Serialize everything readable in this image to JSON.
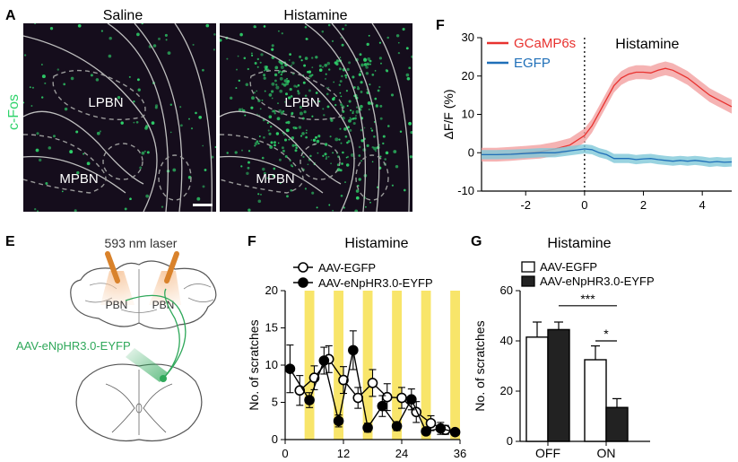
{
  "panel_letters": {
    "A": "A",
    "F_top": "F",
    "E": "E",
    "F_bottom": "F",
    "G": "G"
  },
  "panelA": {
    "labels": {
      "saline": "Saline",
      "histamine": "Histamine",
      "cfos": "c-Fos",
      "lpbn": "LPBN",
      "mpbn": "MPBN"
    },
    "colors": {
      "background": "#150d1c",
      "dots": "#2fd36b",
      "outline": "#bfbfbf"
    }
  },
  "panelE": {
    "laser": "593 nm laser",
    "pbn": "PBN",
    "virus": "AAV-eNpHR3.0-EYFP",
    "colors": {
      "fiber": "#d9822b",
      "virus": "#2fa85a",
      "light": "#f7c8a0"
    }
  },
  "chart_data": [
    {
      "panel": "F (top)",
      "type": "line",
      "title": "Histamine",
      "xlabel": "",
      "ylabel": "ΔF/F (%)",
      "xlim": [
        -3.5,
        5
      ],
      "ylim": [
        -10,
        30
      ],
      "xticks": [
        "-2",
        "0",
        "2",
        "4"
      ],
      "xtick_values": [
        -2,
        0,
        2,
        4
      ],
      "yticks": [
        "-10",
        "0",
        "10",
        "20",
        "30"
      ],
      "ytick_values": [
        -10,
        0,
        10,
        20,
        30
      ],
      "legend": "top-left",
      "series": [
        {
          "name": "GCaMP6s",
          "color": "#e8322f",
          "fill": "#f2a0a0",
          "x": [
            -3.5,
            -3,
            -2.5,
            -2,
            -1.5,
            -1,
            -0.5,
            0,
            0.25,
            0.5,
            0.75,
            1,
            1.25,
            1.5,
            1.75,
            2,
            2.25,
            2.5,
            2.75,
            3,
            3.25,
            3.5,
            3.75,
            4,
            4.25,
            4.5,
            4.75,
            5
          ],
          "y": [
            -0.5,
            -0.5,
            -0.3,
            0,
            0.3,
            1,
            2,
            4.5,
            7,
            10.5,
            14,
            17.5,
            19.5,
            20.5,
            21,
            21,
            20.8,
            21.5,
            22,
            21.5,
            20.5,
            19.5,
            18,
            16.5,
            15,
            14,
            13,
            12
          ],
          "err": 1.8
        },
        {
          "name": "EGFP",
          "color": "#1f6fb8",
          "fill": "#7fc8d8",
          "x": [
            -3.5,
            -3,
            -2.5,
            -2,
            -1.5,
            -1,
            -0.5,
            0,
            0.25,
            0.5,
            0.75,
            1,
            1.25,
            1.5,
            1.75,
            2,
            2.25,
            2.5,
            2.75,
            3,
            3.25,
            3.5,
            3.75,
            4,
            4.25,
            4.5,
            4.75,
            5
          ],
          "y": [
            -0.5,
            -0.5,
            -0.4,
            -0.2,
            0,
            0,
            0.5,
            1,
            0.8,
            0,
            -0.5,
            -1.5,
            -1.5,
            -1.5,
            -1.8,
            -1.6,
            -1.5,
            -1.8,
            -2,
            -2.2,
            -2,
            -2.2,
            -2,
            -2.2,
            -2.5,
            -2.3,
            -2.5,
            -2.4
          ],
          "err": 1.2
        }
      ]
    },
    {
      "panel": "F (bottom)",
      "type": "line",
      "title": "Histamine",
      "xlabel": "",
      "ylabel": "No. of scratches",
      "xlim": [
        0,
        36
      ],
      "ylim": [
        0,
        20
      ],
      "xticks": [
        "0",
        "12",
        "24",
        "36"
      ],
      "xtick_values": [
        0,
        12,
        24,
        36
      ],
      "yticks": [
        "0",
        "5",
        "10",
        "15",
        "20"
      ],
      "ytick_values": [
        0,
        5,
        10,
        15,
        20
      ],
      "legend": "top-left",
      "laser_on_intervals": [
        [
          4,
          6
        ],
        [
          10,
          12
        ],
        [
          16,
          18
        ],
        [
          22,
          24
        ],
        [
          28,
          30
        ],
        [
          34,
          36
        ]
      ],
      "laser_color": "#f8e56a",
      "series": [
        {
          "name": "AAV-EGFP",
          "marker": "open-circle",
          "x": [
            3,
            6,
            9,
            12,
            15,
            18,
            21,
            24,
            27,
            30,
            33
          ],
          "y": [
            6.6,
            8.3,
            10.8,
            8.0,
            5.6,
            7.6,
            5.7,
            5.6,
            3.7,
            2.2,
            1.3
          ],
          "err": [
            2.0,
            1.6,
            1.8,
            1.8,
            1.4,
            1.8,
            1.8,
            1.4,
            1.4,
            1.0,
            0.6
          ]
        },
        {
          "name": "AAV-eNpHR3.0-EYFP",
          "marker": "filled-circle",
          "x": [
            1,
            5,
            8,
            11,
            14,
            17,
            20,
            23,
            26,
            29,
            32,
            35
          ],
          "y": [
            9.5,
            5.3,
            10.6,
            2.5,
            12.0,
            1.6,
            4.5,
            1.8,
            5.4,
            1.1,
            1.5,
            1.0
          ],
          "err": [
            3.2,
            1.0,
            1.8,
            0.8,
            2.6,
            0.6,
            1.4,
            0.6,
            1.4,
            0.4,
            0.8,
            0.4
          ]
        }
      ]
    },
    {
      "panel": "G",
      "type": "bar",
      "title": "Histamine",
      "xlabel": "",
      "ylabel": "No. of scratches",
      "categories": [
        "OFF",
        "ON"
      ],
      "ylim": [
        0,
        60
      ],
      "yticks": [
        "0",
        "20",
        "40",
        "60"
      ],
      "ytick_values": [
        0,
        20,
        40,
        60
      ],
      "legend": "top-left",
      "series": [
        {
          "name": "AAV-EGFP",
          "fill": "#ffffff",
          "values": [
            41.5,
            32.5
          ],
          "err": [
            6,
            5.5
          ]
        },
        {
          "name": "AAV-eNpHR3.0-EYFP",
          "fill": "#222222",
          "values": [
            44.5,
            13.5
          ],
          "err": [
            3,
            3.5
          ]
        }
      ],
      "significance": [
        {
          "label": "***",
          "between": "OFF group 2 to ON group 2"
        },
        {
          "label": "*",
          "between": "ON group 1 to ON group 2"
        }
      ]
    }
  ]
}
